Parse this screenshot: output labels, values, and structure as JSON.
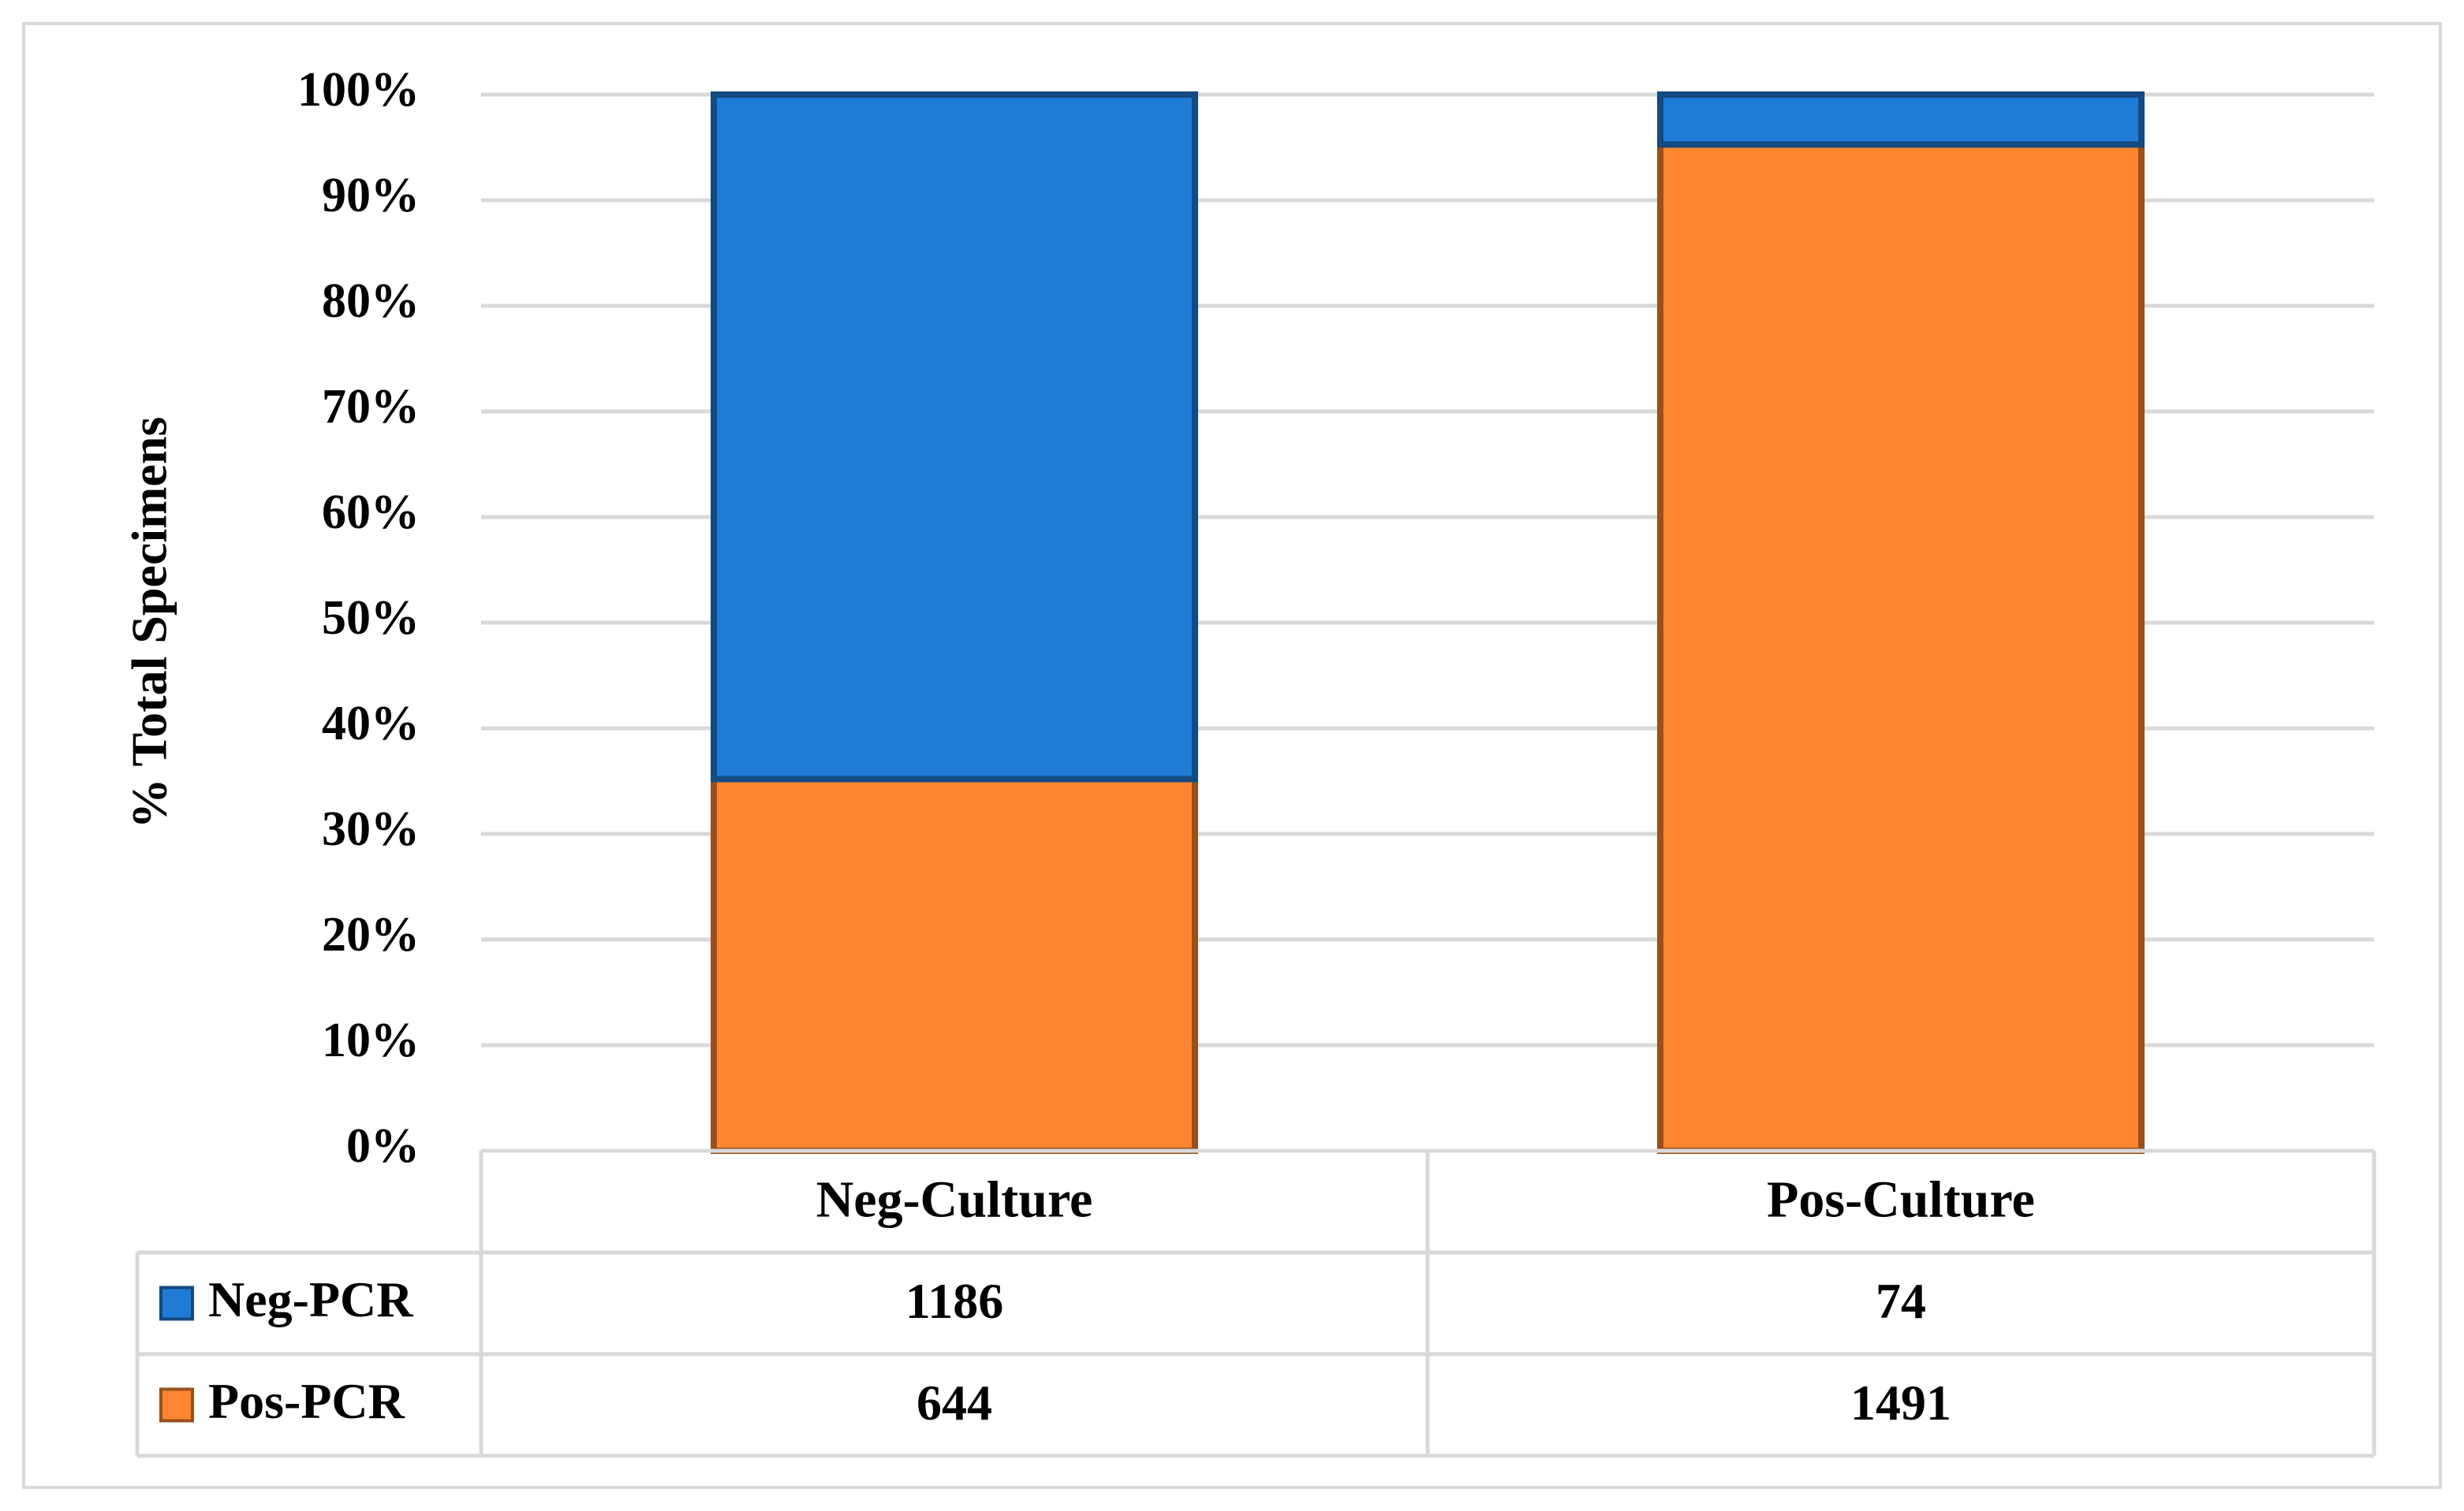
{
  "chart_data": {
    "type": "stacked_percent_bar",
    "y_label": "% Total Specimens",
    "categories": [
      "Neg-Culture",
      "Pos-Culture"
    ],
    "series": [
      {
        "name": "Neg-PCR",
        "color": "#1f7bd6",
        "values": [
          1186,
          74
        ]
      },
      {
        "name": "Pos-PCR",
        "color": "#fe8630",
        "values": [
          644,
          1491
        ]
      }
    ],
    "ylim": [
      0,
      100
    ],
    "yticks": [
      {
        "value": 0,
        "label": "0%"
      },
      {
        "value": 10,
        "label": "10%"
      },
      {
        "value": 20,
        "label": "20%"
      },
      {
        "value": 30,
        "label": "30%"
      },
      {
        "value": 40,
        "label": "40%"
      },
      {
        "value": 50,
        "label": "50%"
      },
      {
        "value": 60,
        "label": "60%"
      },
      {
        "value": 70,
        "label": "70%"
      },
      {
        "value": 80,
        "label": "80%"
      },
      {
        "value": 90,
        "label": "90%"
      },
      {
        "value": 100,
        "label": "100%"
      }
    ],
    "grid": true
  }
}
